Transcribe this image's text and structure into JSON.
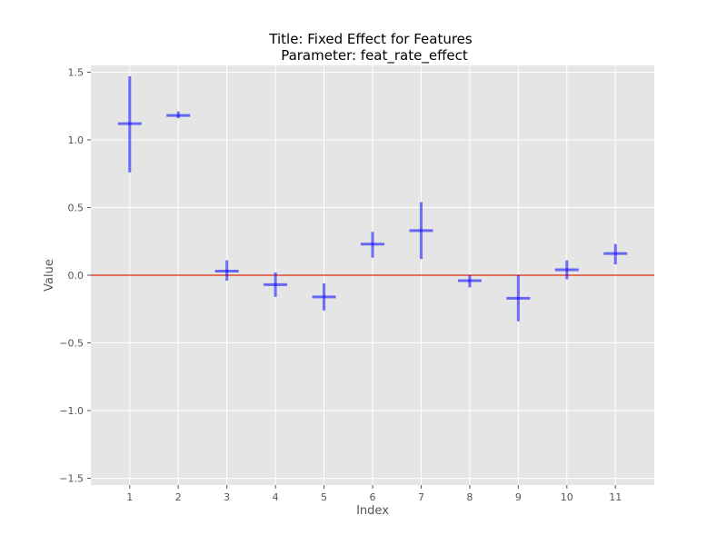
{
  "chart_data": {
    "type": "errorbar",
    "title": "Title: Fixed Effect for Features",
    "subtitle": "Parameter: feat_rate_effect",
    "xlabel": "Index",
    "ylabel": "Value",
    "categories": [
      "1",
      "2",
      "3",
      "4",
      "5",
      "6",
      "7",
      "8",
      "9",
      "10",
      "11"
    ],
    "x": [
      1,
      2,
      3,
      4,
      5,
      6,
      7,
      8,
      9,
      10,
      11
    ],
    "values": [
      1.12,
      1.18,
      0.03,
      -0.07,
      -0.16,
      0.23,
      0.33,
      -0.04,
      -0.17,
      0.04,
      0.16
    ],
    "lower": [
      0.76,
      1.16,
      -0.04,
      -0.16,
      -0.26,
      0.13,
      0.12,
      -0.09,
      -0.34,
      -0.03,
      0.08
    ],
    "upper": [
      1.47,
      1.21,
      0.11,
      0.02,
      -0.06,
      0.32,
      0.54,
      0.0,
      0.0,
      0.11,
      0.23
    ],
    "xlim": [
      0.2,
      11.8
    ],
    "ylim": [
      -1.55,
      1.55
    ],
    "yticks": [
      -1.5,
      -1.0,
      -0.5,
      0.0,
      0.5,
      1.0,
      1.5
    ],
    "ytick_labels": [
      "−1.5",
      "−1.0",
      "−0.5",
      "0.0",
      "0.5",
      "1.0",
      "1.5"
    ],
    "reference_line": 0.0,
    "grid": true,
    "style": "ggplot",
    "colors": {
      "marker": "#0000ff",
      "reference_line": "#e24a33",
      "background": "#e5e5e5",
      "grid": "#ffffff"
    }
  }
}
